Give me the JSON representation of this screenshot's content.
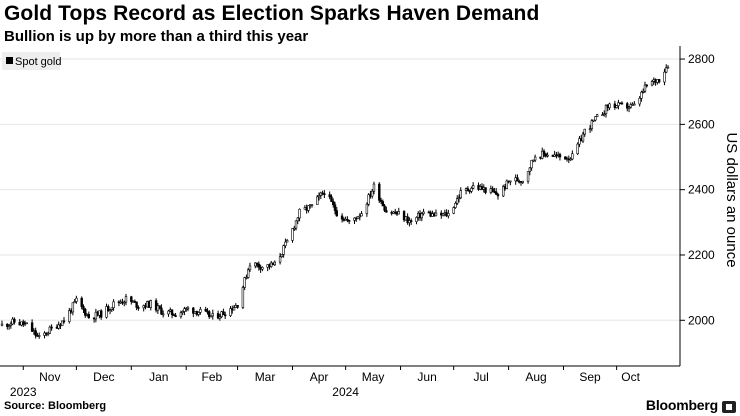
{
  "header": {
    "title": "Gold Tops Record as Election Sparks Haven Demand",
    "subtitle": "Bullion is up by more than a third this year"
  },
  "footer": {
    "source": "Source: Bloomberg",
    "brand": "Bloomberg"
  },
  "colors": {
    "candle": "#000000",
    "gridline": "#e6e6e6",
    "axis": "#000000",
    "legend_bg": "#eeeeee"
  },
  "chart_data": {
    "type": "candlestick",
    "legend": [
      "Spot gold"
    ],
    "legend_placement": "top-left",
    "ylabel": "US dollars an ounce",
    "y_axis_side": "right",
    "ylim": [
      1860,
      2840
    ],
    "yticks": [
      2000,
      2200,
      2400,
      2600,
      2800
    ],
    "grid": true,
    "x_ticks": [
      {
        "label": "Nov",
        "date": "2023-11-01"
      },
      {
        "label": "Dec",
        "date": "2023-12-01"
      },
      {
        "label": "Jan",
        "date": "2024-01-01"
      },
      {
        "label": "Feb",
        "date": "2024-02-01"
      },
      {
        "label": "Mar",
        "date": "2024-03-01"
      },
      {
        "label": "Apr",
        "date": "2024-04-01"
      },
      {
        "label": "May",
        "date": "2024-05-01"
      },
      {
        "label": "Jun",
        "date": "2024-06-01"
      },
      {
        "label": "Jul",
        "date": "2024-07-01"
      },
      {
        "label": "Aug",
        "date": "2024-08-01"
      },
      {
        "label": "Sep",
        "date": "2024-09-01"
      },
      {
        "label": "Oct",
        "date": "2024-10-01"
      }
    ],
    "year_labels": [
      {
        "label": "2023",
        "date": "2023-11-01"
      },
      {
        "label": "2024",
        "date": "2024-05-01"
      }
    ],
    "x_range": [
      "2023-10-20",
      "2024-10-30"
    ],
    "series": [
      {
        "name": "Spot gold",
        "close": [
          [
            "2023-10-20",
            1985
          ],
          [
            "2023-10-27",
            1995
          ],
          [
            "2023-11-03",
            1985
          ],
          [
            "2023-11-10",
            1945
          ],
          [
            "2023-11-17",
            1975
          ],
          [
            "2023-11-24",
            2000
          ],
          [
            "2023-12-01",
            2060
          ],
          [
            "2023-12-08",
            2010
          ],
          [
            "2023-12-15",
            2020
          ],
          [
            "2023-12-22",
            2050
          ],
          [
            "2023-12-29",
            2065
          ],
          [
            "2024-01-05",
            2045
          ],
          [
            "2024-01-12",
            2050
          ],
          [
            "2024-01-19",
            2025
          ],
          [
            "2024-01-26",
            2020
          ],
          [
            "2024-02-02",
            2035
          ],
          [
            "2024-02-09",
            2025
          ],
          [
            "2024-02-16",
            2010
          ],
          [
            "2024-02-23",
            2025
          ],
          [
            "2024-03-01",
            2050
          ],
          [
            "2024-03-08",
            2175
          ],
          [
            "2024-03-15",
            2165
          ],
          [
            "2024-03-22",
            2170
          ],
          [
            "2024-03-29",
            2240
          ],
          [
            "2024-04-05",
            2330
          ],
          [
            "2024-04-12",
            2350
          ],
          [
            "2024-04-19",
            2395
          ],
          [
            "2024-04-26",
            2330
          ],
          [
            "2024-05-03",
            2300
          ],
          [
            "2024-05-10",
            2330
          ],
          [
            "2024-05-17",
            2410
          ],
          [
            "2024-05-24",
            2335
          ],
          [
            "2024-05-31",
            2325
          ],
          [
            "2024-06-07",
            2300
          ],
          [
            "2024-06-14",
            2330
          ],
          [
            "2024-06-21",
            2320
          ],
          [
            "2024-06-28",
            2325
          ],
          [
            "2024-07-05",
            2390
          ],
          [
            "2024-07-12",
            2410
          ],
          [
            "2024-07-19",
            2400
          ],
          [
            "2024-07-26",
            2385
          ],
          [
            "2024-08-02",
            2430
          ],
          [
            "2024-08-09",
            2430
          ],
          [
            "2024-08-16",
            2505
          ],
          [
            "2024-08-23",
            2510
          ],
          [
            "2024-08-30",
            2500
          ],
          [
            "2024-09-06",
            2500
          ],
          [
            "2024-09-13",
            2580
          ],
          [
            "2024-09-20",
            2620
          ],
          [
            "2024-09-27",
            2660
          ],
          [
            "2024-10-04",
            2655
          ],
          [
            "2024-10-11",
            2655
          ],
          [
            "2024-10-18",
            2720
          ],
          [
            "2024-10-25",
            2740
          ],
          [
            "2024-10-30",
            2785
          ]
        ]
      }
    ]
  }
}
